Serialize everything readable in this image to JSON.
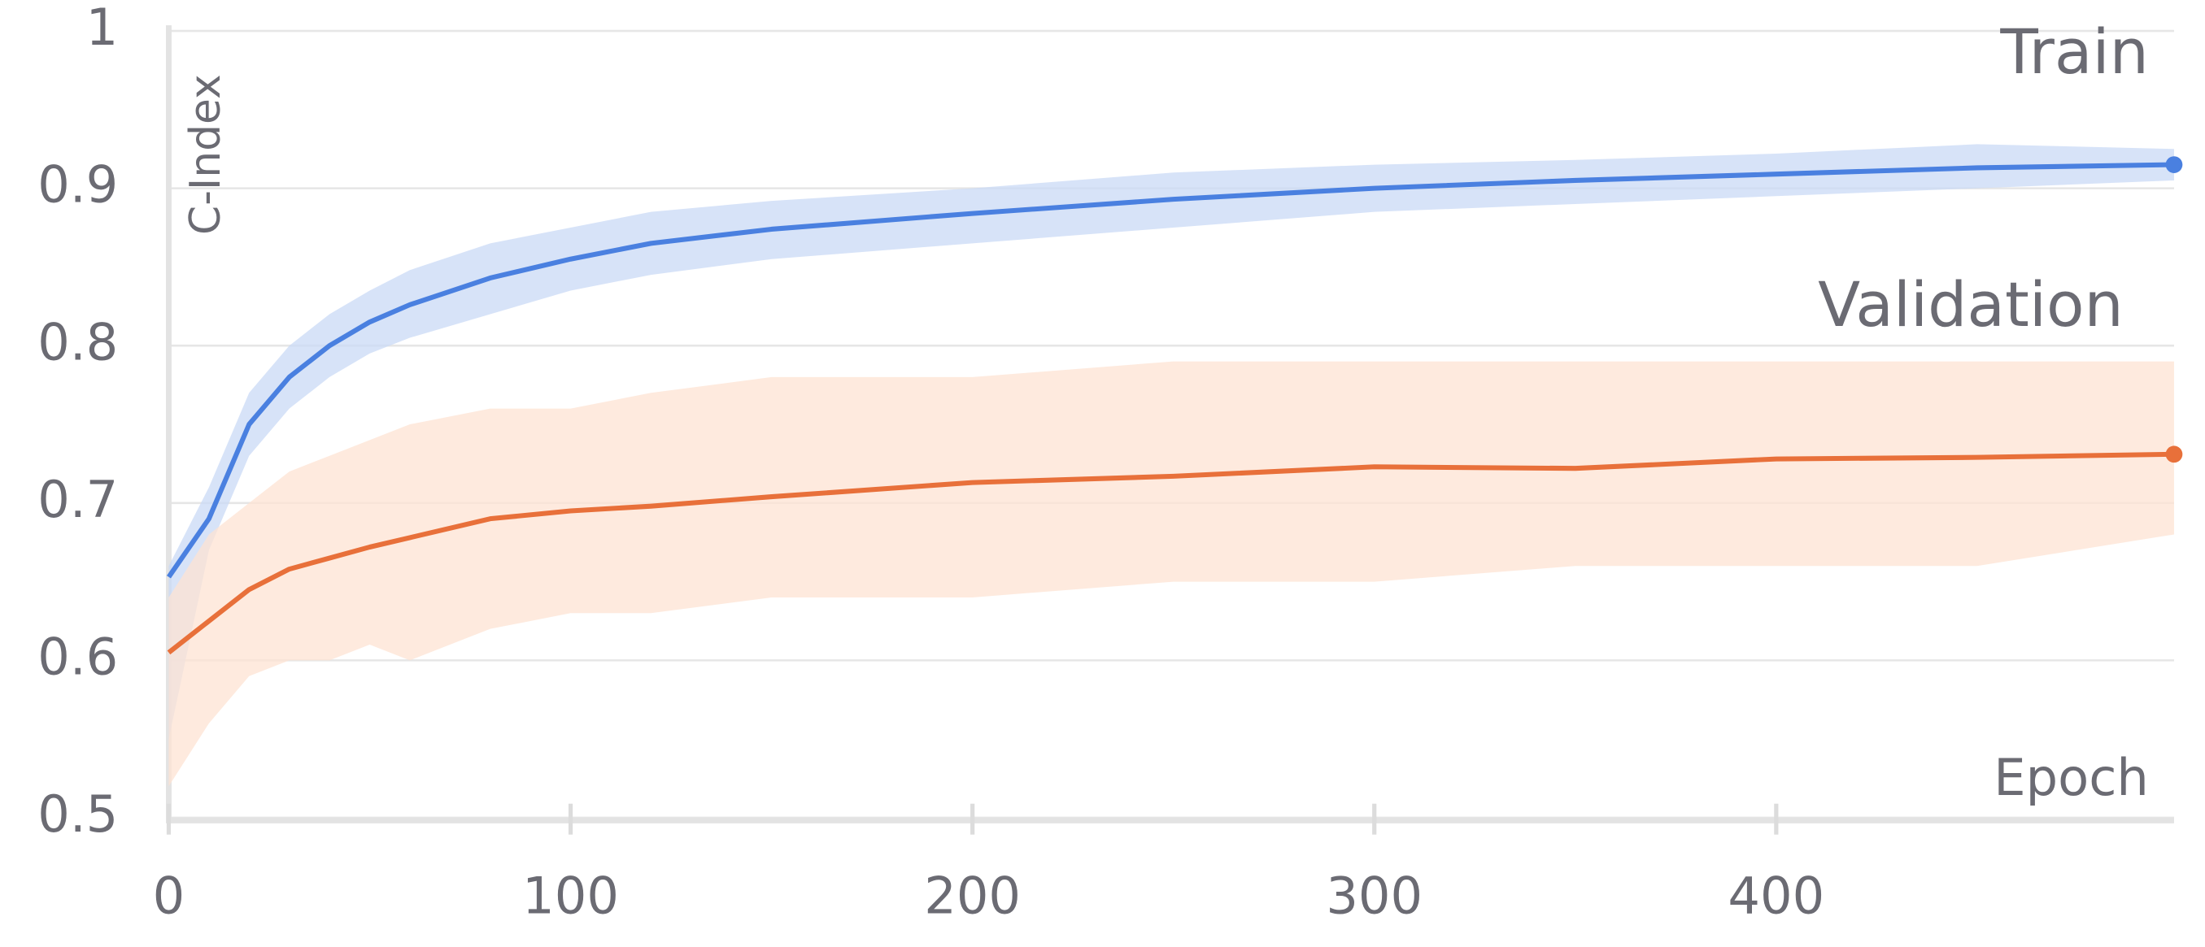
{
  "chart_data": {
    "type": "line",
    "y_label": "C-Index",
    "x_label": "Epoch",
    "x": [
      0,
      10,
      20,
      30,
      40,
      50,
      60,
      80,
      100,
      120,
      150,
      200,
      250,
      300,
      350,
      400,
      450,
      499
    ],
    "series": [
      {
        "name": "Train",
        "color": "#4a80e0",
        "band_color": "#c9daf6",
        "values": [
          0.653,
          0.69,
          0.75,
          0.78,
          0.8,
          0.815,
          0.826,
          0.843,
          0.855,
          0.865,
          0.874,
          0.884,
          0.893,
          0.9,
          0.905,
          0.909,
          0.913,
          0.915
        ],
        "band_low": [
          0.55,
          0.67,
          0.73,
          0.76,
          0.78,
          0.795,
          0.805,
          0.82,
          0.835,
          0.845,
          0.855,
          0.865,
          0.875,
          0.885,
          0.89,
          0.895,
          0.9,
          0.905
        ],
        "band_high": [
          0.66,
          0.71,
          0.77,
          0.8,
          0.82,
          0.835,
          0.848,
          0.865,
          0.875,
          0.885,
          0.892,
          0.9,
          0.91,
          0.915,
          0.918,
          0.922,
          0.928,
          0.925
        ]
      },
      {
        "name": "Validation",
        "color": "#e8703a",
        "band_color": "#fde3d3",
        "values": [
          0.605,
          0.625,
          0.645,
          0.658,
          0.665,
          0.672,
          0.678,
          0.69,
          0.695,
          0.698,
          0.704,
          0.713,
          0.717,
          0.723,
          0.722,
          0.728,
          0.729,
          0.731
        ],
        "band_low": [
          0.52,
          0.56,
          0.59,
          0.6,
          0.6,
          0.61,
          0.6,
          0.62,
          0.63,
          0.63,
          0.64,
          0.64,
          0.65,
          0.65,
          0.66,
          0.66,
          0.66,
          0.68
        ],
        "band_high": [
          0.64,
          0.68,
          0.7,
          0.72,
          0.73,
          0.74,
          0.75,
          0.76,
          0.76,
          0.77,
          0.78,
          0.78,
          0.79,
          0.79,
          0.79,
          0.79,
          0.79,
          0.79
        ]
      }
    ],
    "xlim": [
      0,
      499
    ],
    "ylim": [
      0.5,
      1
    ],
    "xticks": [
      0,
      100,
      200,
      300,
      400
    ],
    "yticks": [
      0.5,
      0.6,
      0.7,
      0.8,
      0.9,
      1
    ],
    "grid": true
  }
}
